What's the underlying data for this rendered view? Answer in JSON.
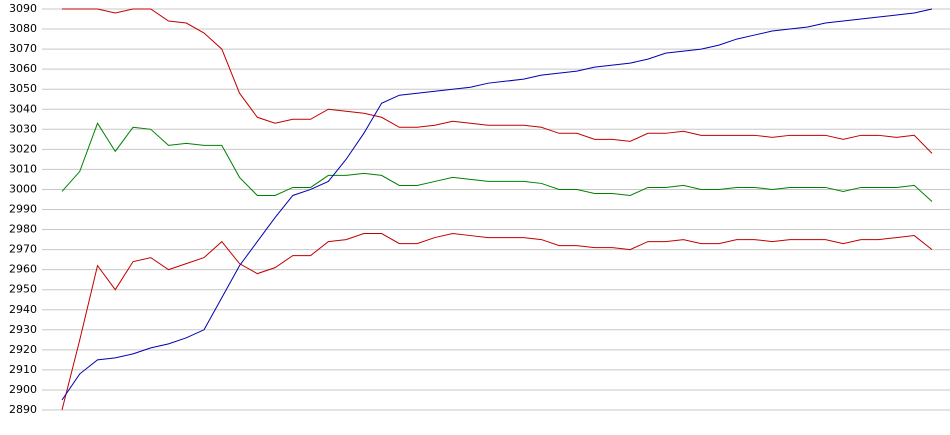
{
  "chart_data": {
    "type": "line",
    "categories": [
      null,
      null,
      null,
      null,
      null,
      null,
      null,
      null,
      null,
      null,
      null,
      null,
      null,
      null,
      null,
      null,
      null,
      null,
      null,
      null,
      null,
      null,
      null,
      null,
      null,
      null,
      null,
      null,
      null,
      null,
      null,
      null,
      null,
      null,
      null,
      null,
      null,
      null,
      null,
      null,
      null,
      null,
      null,
      null,
      null,
      null,
      null,
      null,
      null,
      null
    ],
    "ylim": [
      2890,
      3090
    ],
    "yticks": [
      2890,
      2900,
      2910,
      2920,
      2930,
      2940,
      2950,
      2960,
      2970,
      2980,
      2990,
      3000,
      3010,
      3020,
      3030,
      3040,
      3050,
      3060,
      3070,
      3080,
      3090
    ],
    "grid": true,
    "series": [
      {
        "color": "#c00000",
        "values": [
          3090,
          3090,
          3090,
          3088,
          3090,
          3090,
          3084,
          3083,
          3078,
          3070,
          3048,
          3036,
          3033,
          3035,
          3035,
          3040,
          3039,
          3038,
          3036,
          3031,
          3031,
          3032,
          3034,
          3033,
          3032,
          3032,
          3032,
          3031,
          3028,
          3028,
          3025,
          3025,
          3024,
          3028,
          3028,
          3029,
          3027,
          3027,
          3027,
          3027,
          3026,
          3027,
          3027,
          3027,
          3025,
          3027,
          3027,
          3026,
          3027,
          3018
        ]
      },
      {
        "color": "#008000",
        "values": [
          2999,
          3009,
          3033,
          3019,
          3031,
          3030,
          3022,
          3023,
          3022,
          3022,
          3006,
          2997,
          2997,
          3001,
          3001,
          3007,
          3007,
          3008,
          3007,
          3002,
          3002,
          3004,
          3006,
          3005,
          3004,
          3004,
          3004,
          3003,
          3000,
          3000,
          2998,
          2998,
          2997,
          3001,
          3001,
          3002,
          3000,
          3000,
          3001,
          3001,
          3000,
          3001,
          3001,
          3001,
          2999,
          3001,
          3001,
          3001,
          3002,
          2994
        ]
      },
      {
        "color": "#c00000",
        "values": [
          2890,
          2925,
          2962,
          2950,
          2964,
          2966,
          2960,
          2963,
          2966,
          2974,
          2963,
          2958,
          2961,
          2967,
          2967,
          2974,
          2975,
          2978,
          2978,
          2973,
          2973,
          2976,
          2978,
          2977,
          2976,
          2976,
          2976,
          2975,
          2972,
          2972,
          2971,
          2971,
          2970,
          2974,
          2974,
          2975,
          2973,
          2973,
          2975,
          2975,
          2974,
          2975,
          2975,
          2975,
          2973,
          2975,
          2975,
          2976,
          2977,
          2970
        ]
      },
      {
        "color": "#0000b0",
        "values": [
          2895,
          2908,
          2915,
          2916,
          2918,
          2921,
          2923,
          2926,
          2930,
          2946,
          2962,
          2974,
          2986,
          2997,
          3000,
          3004,
          3015,
          3028,
          3043,
          3047,
          3048,
          3049,
          3050,
          3051,
          3053,
          3054,
          3055,
          3057,
          3058,
          3059,
          3061,
          3062,
          3063,
          3065,
          3068,
          3069,
          3070,
          3072,
          3075,
          3077,
          3079,
          3080,
          3081,
          3083,
          3084,
          3085,
          3086,
          3087,
          3088,
          3090
        ]
      }
    ]
  }
}
